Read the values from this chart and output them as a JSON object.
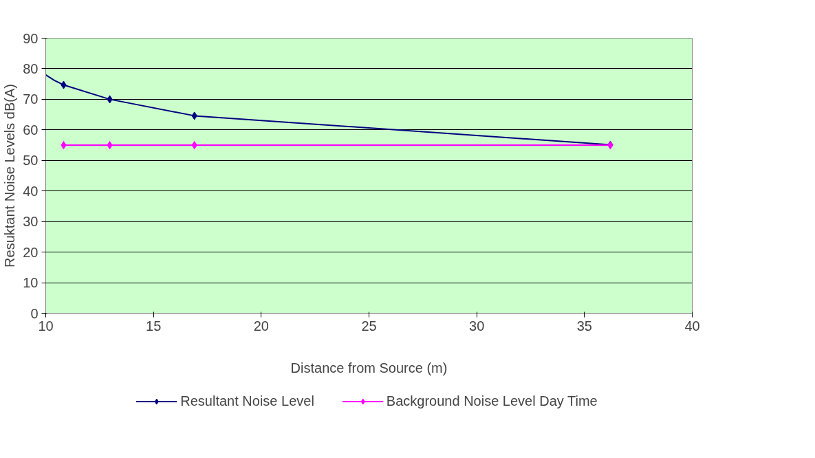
{
  "chart_data": {
    "type": "line",
    "xlabel": "Distance from Source (m)",
    "ylabel": "Resuktant Noise Levels dB(A)",
    "xlim": [
      10,
      40
    ],
    "xticks": [
      10,
      15,
      20,
      25,
      30,
      35,
      40
    ],
    "ylim": [
      0,
      90
    ],
    "yticks": [
      0,
      10,
      20,
      30,
      40,
      50,
      60,
      70,
      80,
      90
    ],
    "grid": "y",
    "legend": "bottom",
    "marker": "diamond",
    "line_style": "solid",
    "series": [
      {
        "name": "Resultant Noise Level",
        "color": "#000080",
        "x": [
          10.83,
          12.97,
          16.9,
          36.2
        ],
        "values": [
          74.7,
          70,
          64.6,
          55.1
        ]
      },
      {
        "color": "#000080",
        "marker": "none",
        "x": [
          10,
          10.4,
          10.83
        ],
        "values": [
          78,
          76.2,
          74.7
        ]
      },
      {
        "name": "Background Noise Level Day Time",
        "color": "#ff00ff",
        "x": [
          10.83,
          12.97,
          16.9,
          36.2
        ],
        "values": [
          55,
          55,
          55,
          55
        ]
      }
    ]
  }
}
